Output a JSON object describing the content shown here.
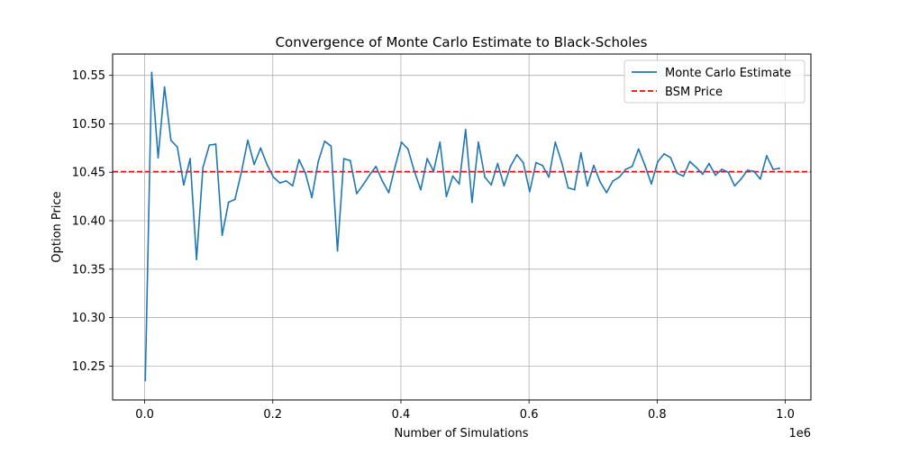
{
  "chart_data": {
    "type": "line",
    "title": "Convergence of Monte Carlo Estimate to Black-Scholes",
    "xlabel": "Number of Simulations",
    "ylabel": "Option Price",
    "x_offset_label": "1e6",
    "xlim": [
      -0.05,
      1.04
    ],
    "ylim": [
      10.215,
      10.572
    ],
    "x_ticks": [
      0.0,
      0.2,
      0.4,
      0.6,
      0.8,
      1.0
    ],
    "x_tick_labels": [
      "0.0",
      "0.2",
      "0.4",
      "0.6",
      "0.8",
      "1.0"
    ],
    "y_ticks": [
      10.25,
      10.3,
      10.35,
      10.4,
      10.45,
      10.5,
      10.55
    ],
    "y_tick_labels": [
      "10.25",
      "10.30",
      "10.35",
      "10.40",
      "10.45",
      "10.50",
      "10.55"
    ],
    "grid": true,
    "legend_position": "top-right",
    "series": [
      {
        "name": "Monte Carlo Estimate",
        "color": "#1f77b4",
        "style": "solid",
        "x": [
          0.001,
          0.011,
          0.021,
          0.031,
          0.041,
          0.051,
          0.061,
          0.071,
          0.081,
          0.091,
          0.101,
          0.111,
          0.121,
          0.131,
          0.141,
          0.151,
          0.161,
          0.171,
          0.181,
          0.191,
          0.201,
          0.211,
          0.221,
          0.231,
          0.241,
          0.251,
          0.261,
          0.271,
          0.281,
          0.291,
          0.301,
          0.311,
          0.321,
          0.331,
          0.341,
          0.351,
          0.361,
          0.371,
          0.381,
          0.391,
          0.401,
          0.411,
          0.421,
          0.431,
          0.441,
          0.451,
          0.461,
          0.471,
          0.481,
          0.491,
          0.501,
          0.511,
          0.521,
          0.531,
          0.541,
          0.551,
          0.561,
          0.571,
          0.581,
          0.591,
          0.601,
          0.611,
          0.621,
          0.631,
          0.641,
          0.651,
          0.661,
          0.671,
          0.681,
          0.691,
          0.701,
          0.711,
          0.721,
          0.731,
          0.741,
          0.751,
          0.761,
          0.771,
          0.781,
          0.791,
          0.801,
          0.811,
          0.821,
          0.831,
          0.841,
          0.851,
          0.861,
          0.871,
          0.881,
          0.891,
          0.901,
          0.911,
          0.921,
          0.931,
          0.941,
          0.951,
          0.961,
          0.971,
          0.981,
          0.991
        ],
        "values": [
          10.235,
          10.553,
          10.465,
          10.538,
          10.483,
          10.476,
          10.437,
          10.464,
          10.36,
          10.455,
          10.478,
          10.479,
          10.385,
          10.419,
          10.422,
          10.45,
          10.483,
          10.458,
          10.475,
          10.458,
          10.445,
          10.439,
          10.441,
          10.436,
          10.463,
          10.449,
          10.424,
          10.461,
          10.482,
          10.477,
          10.369,
          10.464,
          10.462,
          10.428,
          10.437,
          10.447,
          10.456,
          10.441,
          10.429,
          10.456,
          10.481,
          10.474,
          10.451,
          10.432,
          10.464,
          10.451,
          10.481,
          10.425,
          10.446,
          10.438,
          10.494,
          10.419,
          10.481,
          10.445,
          10.437,
          10.459,
          10.436,
          10.456,
          10.468,
          10.46,
          10.43,
          10.46,
          10.457,
          10.445,
          10.481,
          10.46,
          10.434,
          10.432,
          10.47,
          10.436,
          10.457,
          10.44,
          10.429,
          10.441,
          10.445,
          10.453,
          10.456,
          10.474,
          10.457,
          10.438,
          10.461,
          10.469,
          10.465,
          10.449,
          10.446,
          10.461,
          10.455,
          10.448,
          10.459,
          10.447,
          10.453,
          10.45,
          10.436,
          10.443,
          10.452,
          10.451,
          10.443,
          10.467,
          10.453,
          10.454
        ]
      },
      {
        "name": "BSM Price",
        "color": "#ff0000",
        "style": "dashed",
        "hline": 10.4506
      }
    ]
  }
}
